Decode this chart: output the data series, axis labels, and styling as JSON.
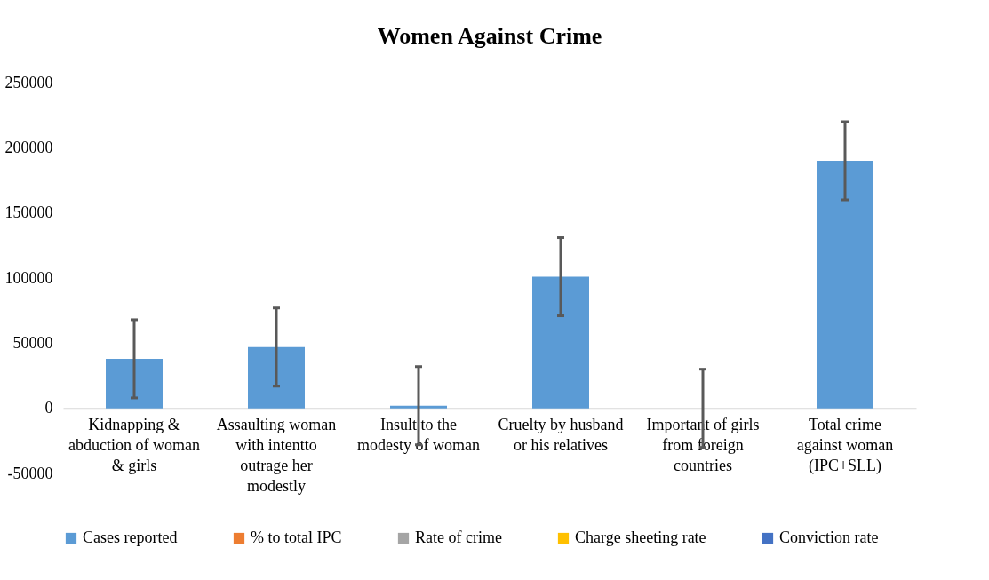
{
  "chart_data": {
    "type": "bar",
    "title": "Women Against Crime",
    "categories": [
      "Kidnapping & abduction of woman & girls",
      "Assaulting woman with intentto outrage her modestly",
      "Insult to the modesty of woman",
      "Cruelty by husband or his relatives",
      "Important of girls from foreign countries",
      "Total crime against woman (IPC+SLL)"
    ],
    "series": [
      {
        "name": "Cases reported",
        "color": "#5b9bd5",
        "values": [
          38000,
          47000,
          2000,
          101000,
          0,
          190000
        ],
        "errors": [
          30000,
          30000,
          30000,
          30000,
          30000,
          30000
        ]
      },
      {
        "name": "% to total IPC",
        "color": "#ed7d31",
        "values": [
          null,
          null,
          null,
          null,
          null,
          null
        ]
      },
      {
        "name": "Rate of crime",
        "color": "#a5a5a5",
        "values": [
          null,
          null,
          null,
          null,
          null,
          null
        ]
      },
      {
        "name": "Charge sheeting rate",
        "color": "#ffc000",
        "values": [
          null,
          null,
          null,
          null,
          null,
          null
        ]
      },
      {
        "name": "Conviction rate",
        "color": "#4472c4",
        "values": [
          null,
          null,
          null,
          null,
          null,
          null
        ]
      }
    ],
    "ylim": [
      -50000,
      250000
    ],
    "yticks": [
      -50000,
      0,
      50000,
      100000,
      150000,
      200000,
      250000
    ],
    "grid": false,
    "legend": "bottom"
  }
}
